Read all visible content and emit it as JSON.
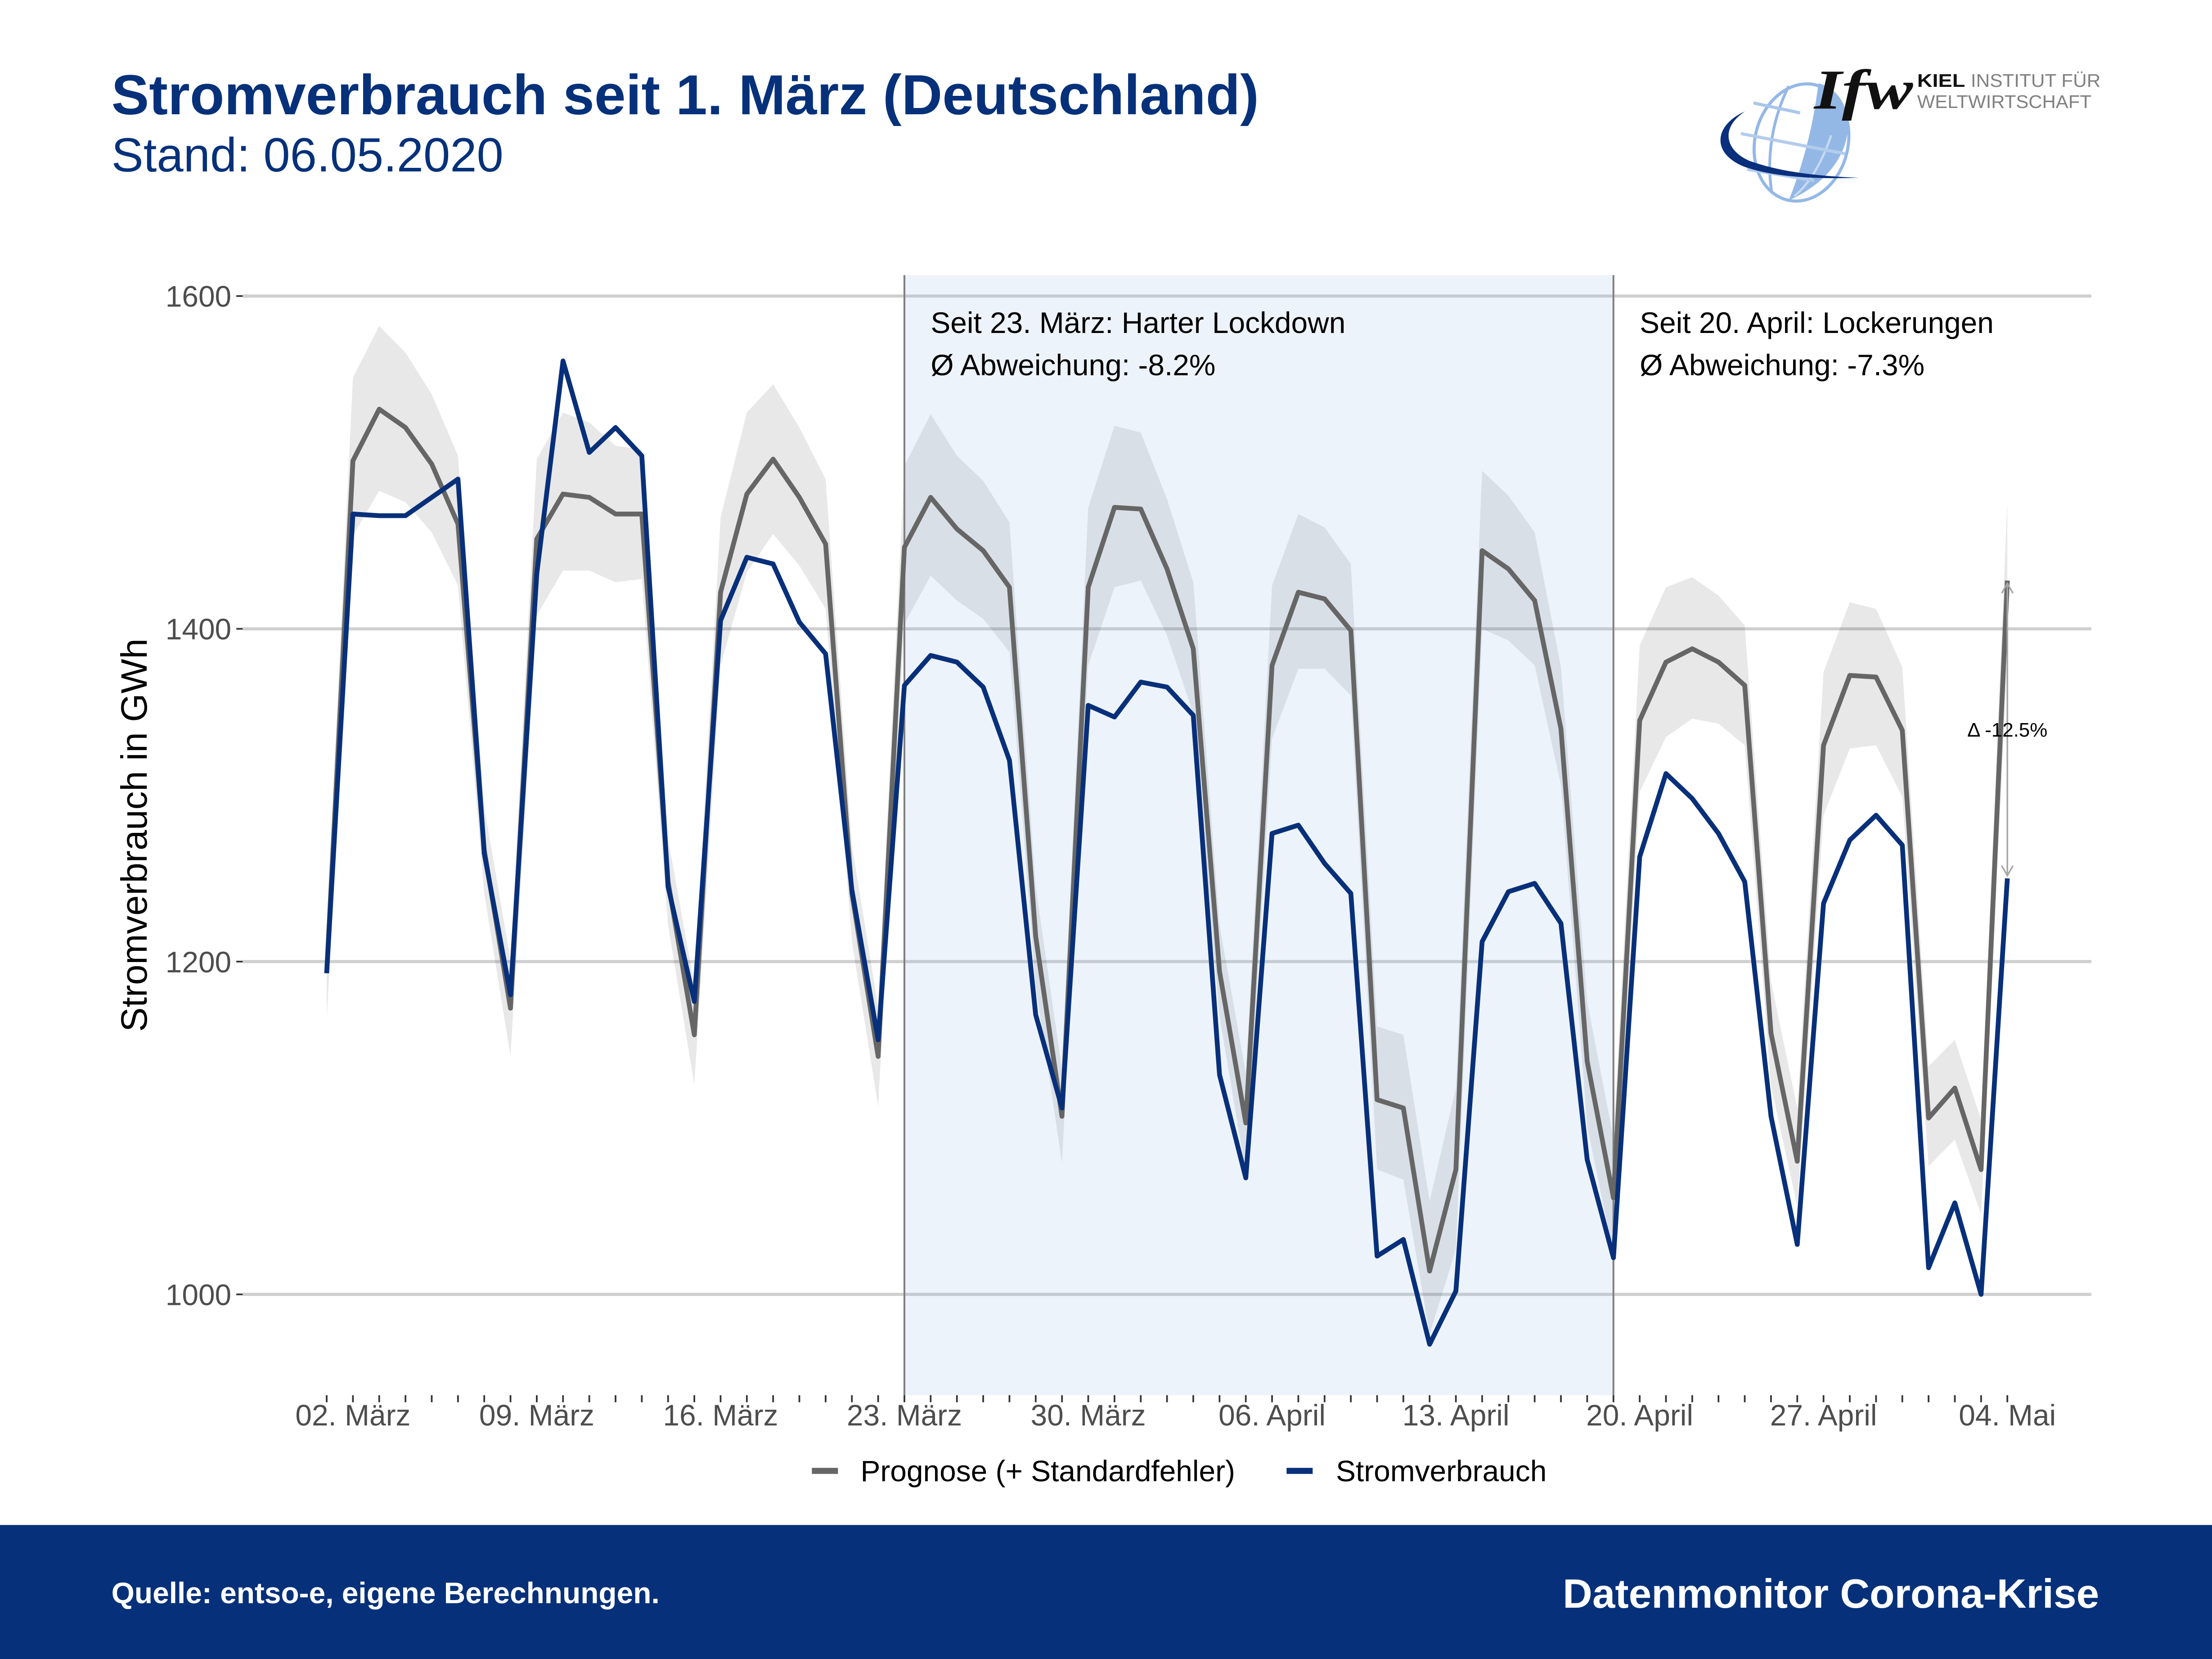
{
  "header": {
    "title": "Stromverbrauch seit 1. März (Deutschland)",
    "subtitle": "Stand: 06.05.2020"
  },
  "logo": {
    "mark": "Ifw",
    "kiel": "KIEL",
    "line1": "INSTITUT FÜR",
    "line2": "WELTWIRTSCHAFT",
    "globe_color": "#94B8E6",
    "swoosh_color": "#0A2F7C"
  },
  "colors": {
    "brand_blue": "#06317A",
    "footer_text": "#FFFFFF"
  },
  "chart_data": {
    "type": "line",
    "title": "Stromverbrauch seit 1. März (Deutschland)",
    "subtitle": "Stand: 06.05.2020",
    "xlabel": "",
    "ylabel": "Stromverbrauch in GWh",
    "ylim": [
      939.4,
      1612.6
    ],
    "yticks": [
      1000,
      1200,
      1400,
      1600
    ],
    "grid": "horizontal",
    "legend": {
      "position": "bottom"
    },
    "dates": [
      "2020-03-01",
      "2020-03-02",
      "2020-03-03",
      "2020-03-04",
      "2020-03-05",
      "2020-03-06",
      "2020-03-07",
      "2020-03-08",
      "2020-03-09",
      "2020-03-10",
      "2020-03-11",
      "2020-03-12",
      "2020-03-13",
      "2020-03-14",
      "2020-03-15",
      "2020-03-16",
      "2020-03-17",
      "2020-03-18",
      "2020-03-19",
      "2020-03-20",
      "2020-03-21",
      "2020-03-22",
      "2020-03-23",
      "2020-03-24",
      "2020-03-25",
      "2020-03-26",
      "2020-03-27",
      "2020-03-28",
      "2020-03-29",
      "2020-03-30",
      "2020-03-31",
      "2020-04-01",
      "2020-04-02",
      "2020-04-03",
      "2020-04-04",
      "2020-04-05",
      "2020-04-06",
      "2020-04-07",
      "2020-04-08",
      "2020-04-09",
      "2020-04-10",
      "2020-04-11",
      "2020-04-12",
      "2020-04-13",
      "2020-04-14",
      "2020-04-15",
      "2020-04-16",
      "2020-04-17",
      "2020-04-18",
      "2020-04-19",
      "2020-04-20",
      "2020-04-21",
      "2020-04-22",
      "2020-04-23",
      "2020-04-24",
      "2020-04-25",
      "2020-04-26",
      "2020-04-27",
      "2020-04-28",
      "2020-04-29",
      "2020-04-30",
      "2020-05-01",
      "2020-05-02",
      "2020-05-03",
      "2020-05-04"
    ],
    "xticks": [
      {
        "date": "2020-03-02",
        "label": "02. März"
      },
      {
        "date": "2020-03-09",
        "label": "09. März"
      },
      {
        "date": "2020-03-16",
        "label": "16. März"
      },
      {
        "date": "2020-03-23",
        "label": "23. März"
      },
      {
        "date": "2020-03-30",
        "label": "30. März"
      },
      {
        "date": "2020-04-06",
        "label": "06. April"
      },
      {
        "date": "2020-04-13",
        "label": "13. April"
      },
      {
        "date": "2020-04-20",
        "label": "20. April"
      },
      {
        "date": "2020-04-27",
        "label": "27. April"
      },
      {
        "date": "2020-05-04",
        "label": "04. Mai"
      }
    ],
    "series": [
      {
        "name": "Prognose (+ Standardfehler)",
        "color": "#666666",
        "values": [
          1193,
          1501,
          1532,
          1521,
          1499,
          1463,
          1267,
          1172,
          1454,
          1481,
          1479,
          1469,
          1469,
          1248,
          1156,
          1422,
          1481,
          1502,
          1479,
          1451,
          1241,
          1143,
          1449,
          1479,
          1460,
          1447,
          1425,
          1215,
          1107,
          1425,
          1473,
          1472,
          1436,
          1388,
          1194,
          1103,
          1378,
          1422,
          1418,
          1399,
          1117,
          1112,
          1014,
          1075,
          1447,
          1436,
          1417,
          1340,
          1140,
          1058,
          1345,
          1380,
          1388,
          1380,
          1366,
          1157,
          1080,
          1330,
          1372,
          1371,
          1339,
          1106,
          1124,
          1075,
          1429
        ],
        "band_lower": [
          1165,
          1456,
          1483,
          1476,
          1458,
          1426,
          1241,
          1143,
          1408,
          1435,
          1435,
          1428,
          1430,
          1222,
          1126,
          1378,
          1434,
          1457,
          1438,
          1412,
          1212,
          1113,
          1403,
          1432,
          1417,
          1406,
          1386,
          1185,
          1079,
          1378,
          1425,
          1429,
          1396,
          1349,
          1167,
          1073,
          1334,
          1376,
          1376,
          1360,
          1075,
          1069,
          976,
          1027,
          1400,
          1393,
          1378,
          1306,
          1101,
          1024,
          1302,
          1335,
          1346,
          1343,
          1330,
          1125,
          1053,
          1288,
          1328,
          1330,
          1299,
          1077,
          1093,
          1048,
          1382
        ],
        "band_upper": [
          1221,
          1551,
          1582,
          1566,
          1541,
          1504,
          1293,
          1201,
          1502,
          1530,
          1524,
          1510,
          1508,
          1274,
          1186,
          1467,
          1530,
          1547,
          1521,
          1490,
          1270,
          1173,
          1498,
          1529,
          1504,
          1489,
          1464,
          1245,
          1135,
          1473,
          1522,
          1518,
          1478,
          1428,
          1222,
          1133,
          1426,
          1469,
          1461,
          1439,
          1161,
          1156,
          1056,
          1124,
          1495,
          1480,
          1458,
          1377,
          1176,
          1094,
          1390,
          1425,
          1431,
          1420,
          1402,
          1188,
          1112,
          1374,
          1416,
          1412,
          1377,
          1137,
          1153,
          1105,
          1477
        ]
      },
      {
        "name": "Stromverbrauch",
        "color": "#08307A",
        "values": [
          1193,
          1469,
          1468,
          1468,
          1479,
          1490,
          1265,
          1180,
          1433,
          1561,
          1506,
          1521,
          1504,
          1245,
          1176,
          1405,
          1443,
          1439,
          1404,
          1385,
          1243,
          1153,
          1366,
          1384,
          1380,
          1365,
          1321,
          1168,
          1112,
          1354,
          1347,
          1368,
          1365,
          1348,
          1132,
          1070,
          1277,
          1282,
          1259,
          1241,
          1023,
          1033,
          970,
          1002,
          1212,
          1242,
          1247,
          1223,
          1081,
          1022,
          1263,
          1313,
          1298,
          1277,
          1248,
          1107,
          1030,
          1235,
          1273,
          1288,
          1270,
          1016,
          1055,
          1000,
          1250
        ]
      }
    ],
    "shaded_period": {
      "start": "2020-03-23",
      "end": "2020-04-19",
      "color": "#92B6E3"
    },
    "event_lines": [
      "2020-03-23",
      "2020-04-19"
    ],
    "annotations": [
      {
        "date": "2020-03-24",
        "lines": [
          "Seit 23. März: Harter Lockdown",
          "Ø Abweichung: -8.2%"
        ]
      },
      {
        "date": "2020-04-20",
        "lines": [
          "Seit 20. April: Lockerungen",
          "Ø Abweichung: -7.3%"
        ]
      }
    ],
    "delta_marker": {
      "date": "2020-05-04",
      "from": 1429,
      "to": 1250,
      "label": "Δ -12.5%"
    }
  },
  "footer": {
    "source": "Quelle: entso-e, eigene Berechnungen.",
    "brand": "Datenmonitor Corona-Krise"
  }
}
